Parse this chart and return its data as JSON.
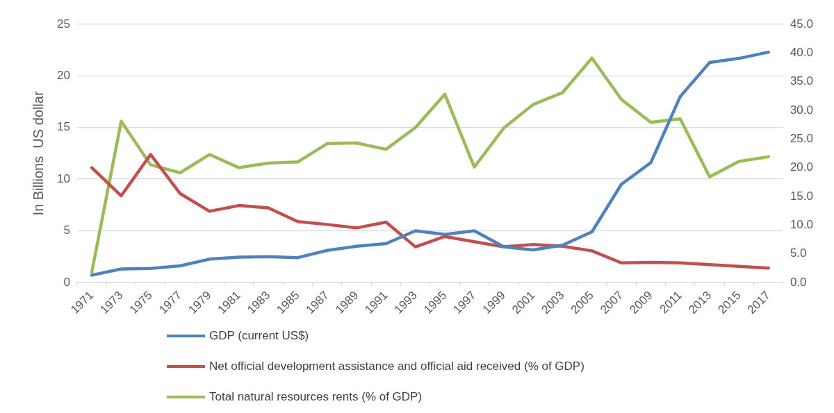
{
  "chart_data": {
    "type": "line",
    "ylabel": "In Billions  US dollar",
    "categories": [
      "1971",
      "1973",
      "1975",
      "1977",
      "1979",
      "1981",
      "1983",
      "1985",
      "1987",
      "1989",
      "1991",
      "1993",
      "1995",
      "1997",
      "1999",
      "2001",
      "2003",
      "2005",
      "2007",
      "2009",
      "2011",
      "2013",
      "2015",
      "2017"
    ],
    "series": [
      {
        "name": "GDP (current US$)",
        "color": "#4f81bd",
        "values": [
          0.7,
          1.3,
          1.35,
          1.6,
          2.25,
          2.45,
          2.5,
          2.4,
          3.1,
          3.5,
          3.75,
          5.0,
          4.65,
          5.0,
          3.45,
          3.15,
          3.6,
          4.9,
          9.5,
          11.6,
          18.0,
          21.3,
          21.7,
          22.3
        ]
      },
      {
        "name": "Net official development assistance and official aid received (% of GDP)",
        "color": "#c0504d",
        "axis": "y2",
        "values": [
          20.0,
          15.1,
          22.3,
          15.5,
          12.4,
          13.4,
          13.0,
          10.6,
          10.1,
          9.5,
          10.5,
          6.2,
          8.0,
          7.1,
          6.2,
          6.6,
          6.3,
          5.5,
          3.4,
          3.5,
          3.4,
          3.1,
          2.8,
          2.5
        ]
      },
      {
        "name": "Total natural resources rents (% of GDP)",
        "color": "#9bbb59",
        "axis": "y2",
        "values": [
          1.8,
          28.1,
          20.5,
          19.1,
          22.3,
          20.0,
          20.8,
          21.0,
          24.2,
          24.3,
          23.2,
          27.0,
          32.8,
          20.1,
          26.9,
          31.0,
          33.1,
          39.1,
          31.9,
          27.9,
          28.5,
          18.4,
          21.1,
          21.9
        ]
      }
    ],
    "ylim": [
      0,
      25
    ],
    "yticks": [
      0,
      5,
      10,
      15,
      20,
      25
    ],
    "y2lim": [
      0,
      45
    ],
    "y2ticks": [
      {
        "value": 0,
        "label": "0.0"
      },
      {
        "value": 5,
        "label": "5.0"
      },
      {
        "value": 10,
        "label": "10.0"
      },
      {
        "value": 15,
        "label": "15.0"
      },
      {
        "value": 20,
        "label": "20.0"
      },
      {
        "value": 25,
        "label": "25.0"
      },
      {
        "value": 30,
        "label": "30.0"
      },
      {
        "value": 35,
        "label": "35.0"
      },
      {
        "value": 40,
        "label": "40.0"
      },
      {
        "value": 45,
        "label": "45.0"
      }
    ],
    "grid": "y",
    "legend": "bottom",
    "marker": "none",
    "line_style": "solid"
  }
}
